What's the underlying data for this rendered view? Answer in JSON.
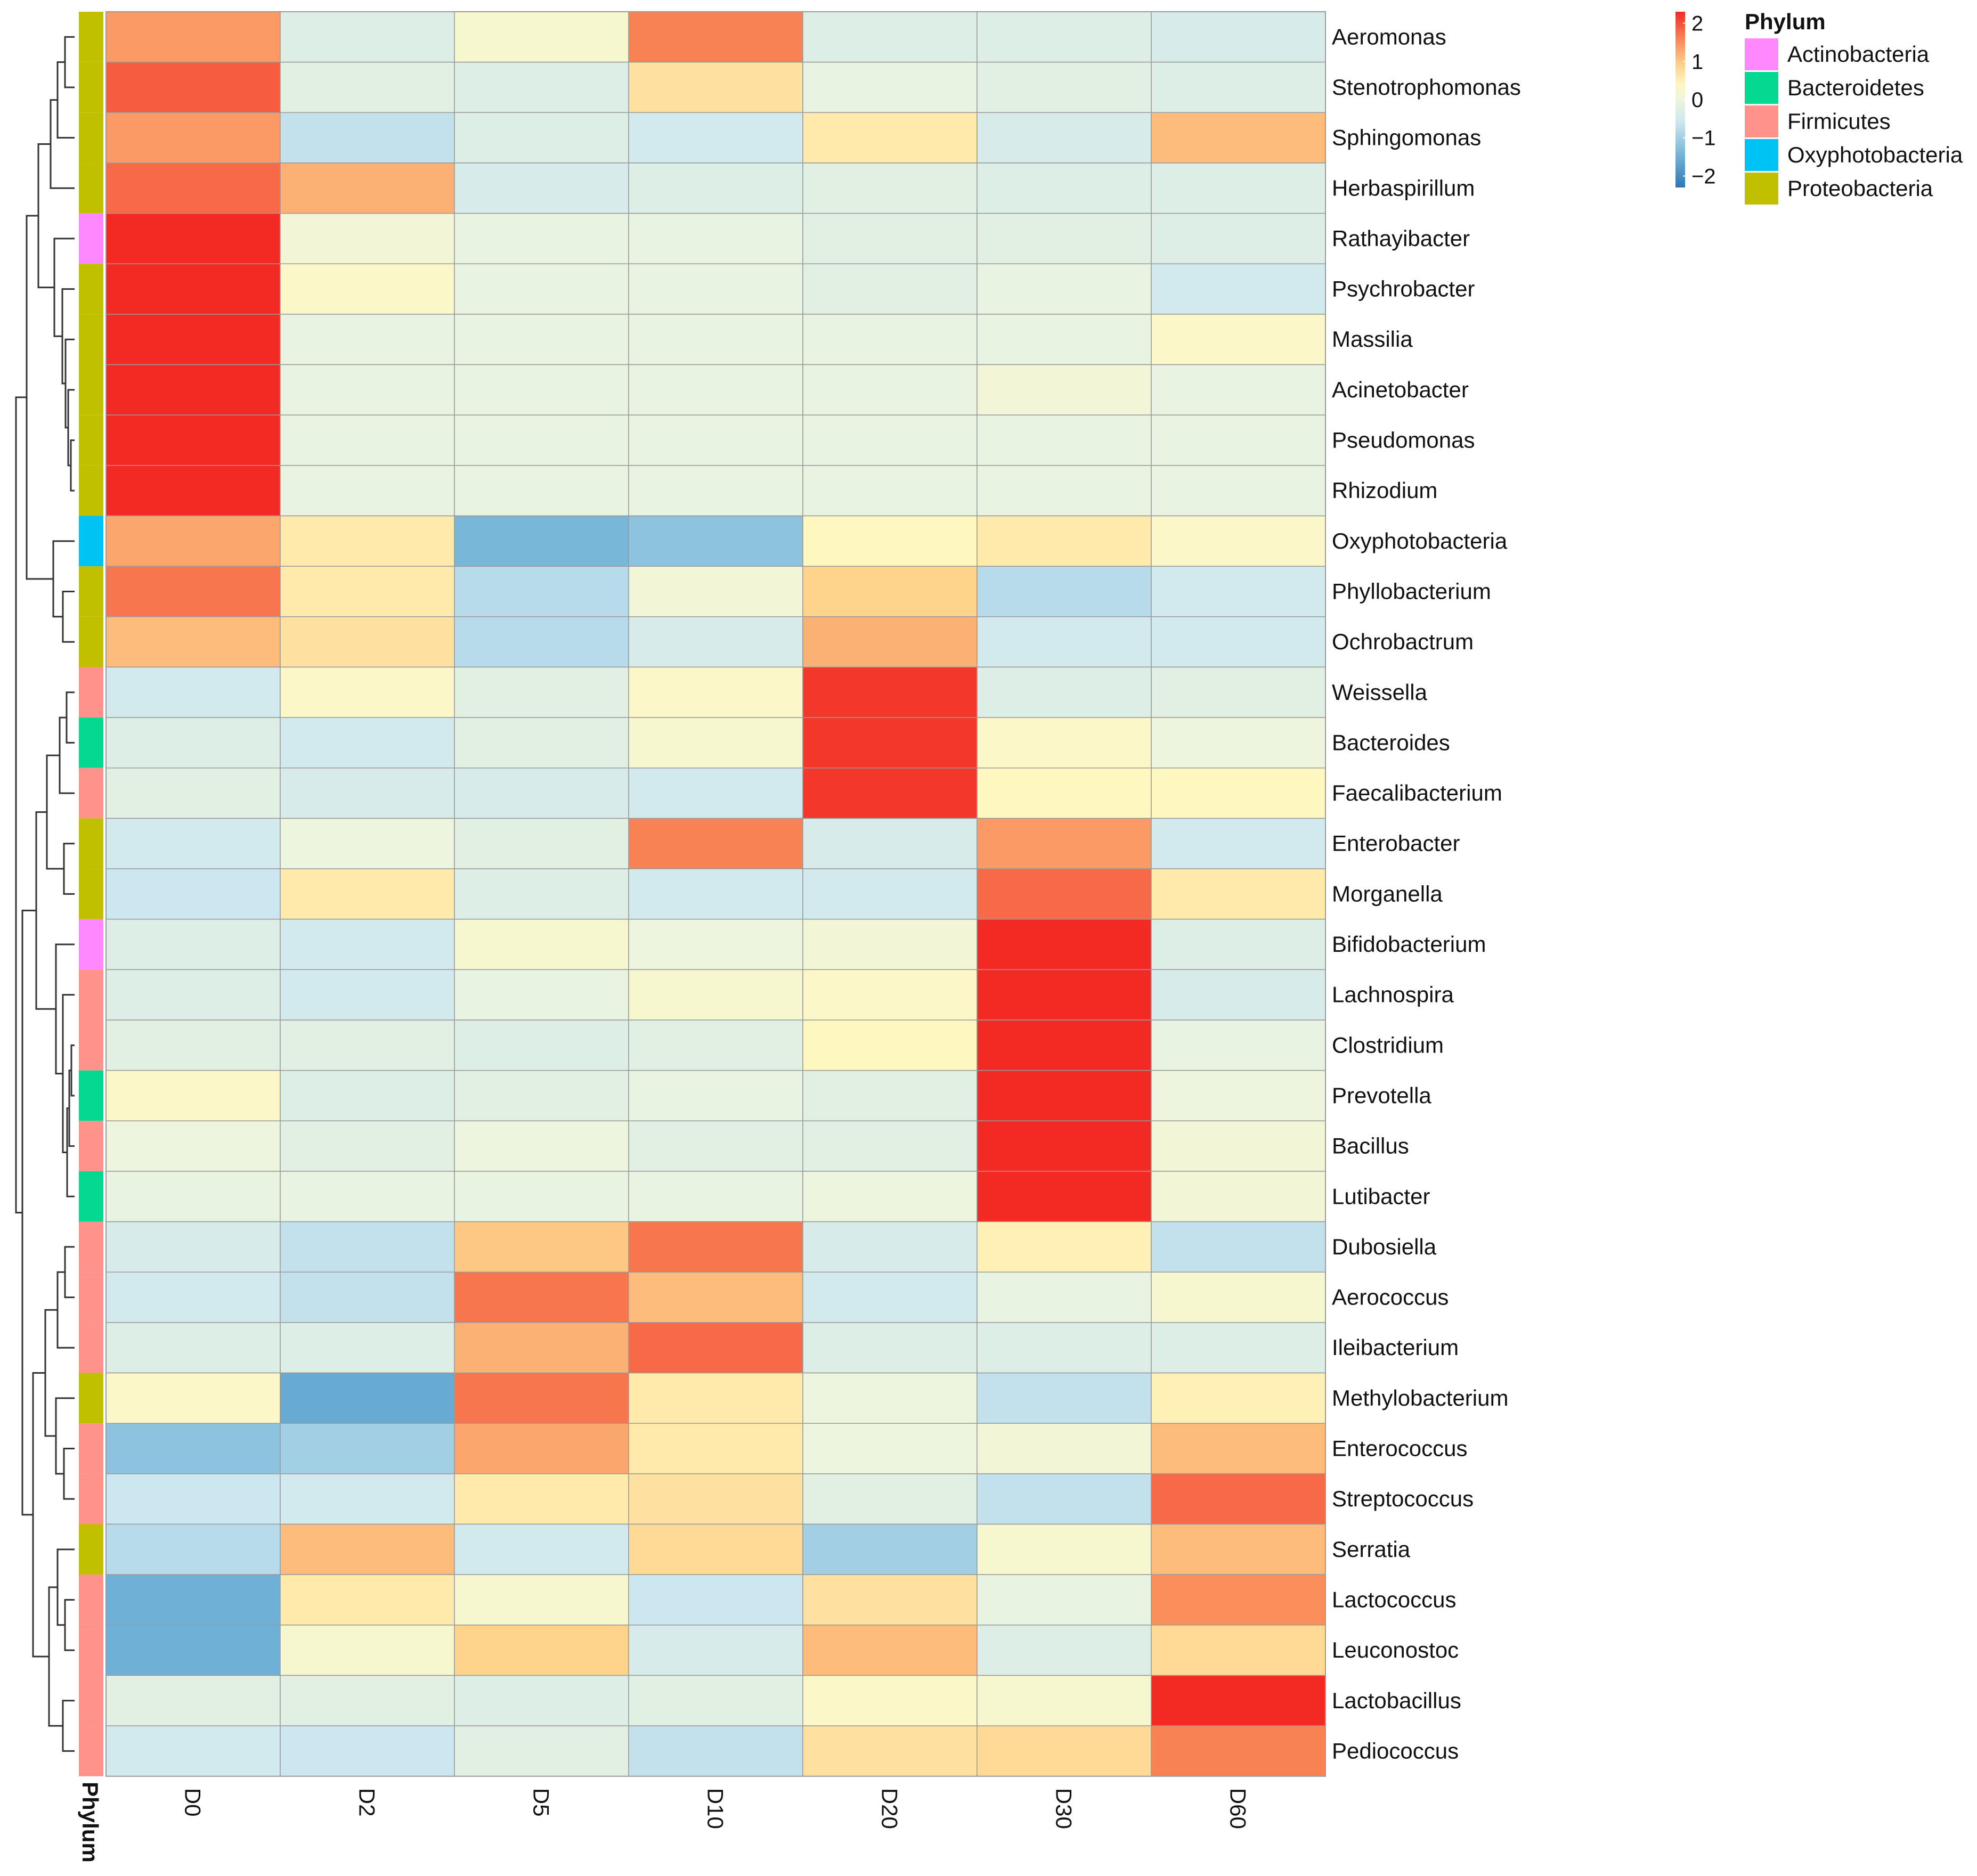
{
  "chart_data": {
    "type": "heatmap",
    "title": "",
    "annotation_title": "Phylum",
    "columns": [
      "D0",
      "D2",
      "D5",
      "D10",
      "D20",
      "D30",
      "D60"
    ],
    "rows": [
      {
        "name": "Aeromonas",
        "phylum": "Proteobacteria",
        "values": [
          1.4,
          -0.3,
          0.2,
          1.6,
          -0.3,
          -0.3,
          -0.4
        ]
      },
      {
        "name": "Stenotrophomonas",
        "phylum": "Proteobacteria",
        "values": [
          1.9,
          -0.2,
          -0.3,
          0.7,
          -0.1,
          -0.2,
          -0.3
        ]
      },
      {
        "name": "Sphingomonas",
        "phylum": "Proteobacteria",
        "values": [
          1.4,
          -0.7,
          -0.3,
          -0.5,
          0.6,
          -0.4,
          1.1
        ]
      },
      {
        "name": "Herbaspirillum",
        "phylum": "Proteobacteria",
        "values": [
          1.8,
          1.2,
          -0.4,
          -0.3,
          -0.2,
          -0.3,
          -0.3
        ]
      },
      {
        "name": "Rathayibacter",
        "phylum": "Actinobacteria",
        "values": [
          2.3,
          0.1,
          -0.1,
          -0.1,
          -0.2,
          -0.2,
          -0.3
        ]
      },
      {
        "name": "Psychrobacter",
        "phylum": "Proteobacteria",
        "values": [
          2.3,
          0.3,
          -0.1,
          -0.1,
          -0.2,
          -0.1,
          -0.5
        ]
      },
      {
        "name": "Massilia",
        "phylum": "Proteobacteria",
        "values": [
          2.3,
          -0.1,
          -0.1,
          -0.1,
          -0.1,
          -0.1,
          0.3
        ]
      },
      {
        "name": "Acinetobacter",
        "phylum": "Proteobacteria",
        "values": [
          2.3,
          -0.1,
          -0.1,
          -0.1,
          -0.1,
          0.1,
          -0.1
        ]
      },
      {
        "name": "Pseudomonas",
        "phylum": "Proteobacteria",
        "values": [
          2.3,
          -0.1,
          -0.1,
          -0.1,
          -0.1,
          -0.1,
          -0.1
        ]
      },
      {
        "name": "Rhizodium",
        "phylum": "Proteobacteria",
        "values": [
          2.3,
          -0.1,
          -0.1,
          -0.1,
          -0.1,
          -0.1,
          -0.1
        ]
      },
      {
        "name": "Oxyphotobacteria",
        "phylum": "Oxyphotobacteria",
        "values": [
          1.3,
          0.6,
          -1.4,
          -1.2,
          0.4,
          0.6,
          0.3
        ]
      },
      {
        "name": "Phyllobacterium",
        "phylum": "Proteobacteria",
        "values": [
          1.7,
          0.6,
          -0.8,
          0.1,
          0.9,
          -0.8,
          -0.5
        ]
      },
      {
        "name": "Ochrobactrum",
        "phylum": "Proteobacteria",
        "values": [
          1.1,
          0.7,
          -0.8,
          -0.4,
          1.2,
          -0.5,
          -0.5
        ]
      },
      {
        "name": "Weissella",
        "phylum": "Firmicutes",
        "values": [
          -0.5,
          0.3,
          -0.2,
          0.3,
          2.2,
          -0.3,
          -0.2
        ]
      },
      {
        "name": "Bacteroides",
        "phylum": "Bacteroidetes",
        "values": [
          -0.3,
          -0.5,
          -0.2,
          0.2,
          2.2,
          0.3,
          0.0
        ]
      },
      {
        "name": "Faecalibacterium",
        "phylum": "Firmicutes",
        "values": [
          -0.2,
          -0.4,
          -0.4,
          -0.5,
          2.2,
          0.4,
          0.4
        ]
      },
      {
        "name": "Enterobacter",
        "phylum": "Proteobacteria",
        "values": [
          -0.5,
          0.0,
          -0.2,
          1.6,
          -0.4,
          1.4,
          -0.5
        ]
      },
      {
        "name": "Morganella",
        "phylum": "Proteobacteria",
        "values": [
          -0.6,
          0.6,
          -0.3,
          -0.5,
          -0.5,
          1.8,
          0.6
        ]
      },
      {
        "name": "Bifidobacterium",
        "phylum": "Actinobacteria",
        "values": [
          -0.3,
          -0.5,
          0.2,
          0.0,
          0.1,
          2.3,
          -0.3
        ]
      },
      {
        "name": "Lachnospira",
        "phylum": "Firmicutes",
        "values": [
          -0.3,
          -0.5,
          -0.1,
          0.2,
          0.3,
          2.3,
          -0.4
        ]
      },
      {
        "name": "Clostridium",
        "phylum": "Firmicutes",
        "values": [
          -0.2,
          -0.2,
          -0.3,
          -0.2,
          0.4,
          2.3,
          -0.1
        ]
      },
      {
        "name": "Prevotella",
        "phylum": "Bacteroidetes",
        "values": [
          0.3,
          -0.3,
          -0.2,
          -0.1,
          -0.2,
          2.3,
          0.0
        ]
      },
      {
        "name": "Bacillus",
        "phylum": "Firmicutes",
        "values": [
          0.0,
          -0.2,
          0.0,
          -0.2,
          -0.2,
          2.3,
          0.1
        ]
      },
      {
        "name": "Lutibacter",
        "phylum": "Bacteroidetes",
        "values": [
          -0.1,
          -0.1,
          -0.1,
          -0.1,
          0.0,
          2.3,
          0.1
        ]
      },
      {
        "name": "Dubosiella",
        "phylum": "Firmicutes",
        "values": [
          -0.4,
          -0.7,
          1.0,
          1.7,
          -0.4,
          0.5,
          -0.7
        ]
      },
      {
        "name": "Aerococcus",
        "phylum": "Firmicutes",
        "values": [
          -0.5,
          -0.7,
          1.7,
          1.1,
          -0.5,
          -0.1,
          0.2
        ]
      },
      {
        "name": "Ileibacterium",
        "phylum": "Firmicutes",
        "values": [
          -0.3,
          -0.3,
          1.2,
          1.8,
          -0.3,
          -0.3,
          -0.3
        ]
      },
      {
        "name": "Methylobacterium",
        "phylum": "Proteobacteria",
        "values": [
          0.3,
          -1.6,
          1.7,
          0.6,
          0.0,
          -0.7,
          0.5
        ]
      },
      {
        "name": "Enterococcus",
        "phylum": "Firmicutes",
        "values": [
          -1.2,
          -1.0,
          1.3,
          0.6,
          0.0,
          0.1,
          1.1
        ]
      },
      {
        "name": "Streptococcus",
        "phylum": "Firmicutes",
        "values": [
          -0.6,
          -0.5,
          0.6,
          0.7,
          -0.2,
          -0.7,
          1.8
        ]
      },
      {
        "name": "Serratia",
        "phylum": "Proteobacteria",
        "values": [
          -0.8,
          1.1,
          -0.5,
          0.8,
          -1.0,
          0.2,
          1.1
        ]
      },
      {
        "name": "Lactococcus",
        "phylum": "Firmicutes",
        "values": [
          -1.5,
          0.6,
          0.2,
          -0.6,
          0.7,
          -0.1,
          1.5
        ]
      },
      {
        "name": "Leuconostoc",
        "phylum": "Firmicutes",
        "values": [
          -1.5,
          0.2,
          0.9,
          -0.4,
          1.1,
          -0.3,
          0.8
        ]
      },
      {
        "name": "Lactobacillus",
        "phylum": "Firmicutes",
        "values": [
          -0.2,
          -0.2,
          -0.3,
          -0.2,
          0.3,
          0.2,
          2.3
        ]
      },
      {
        "name": "Pediococcus",
        "phylum": "Firmicutes",
        "values": [
          -0.5,
          -0.6,
          -0.2,
          -0.7,
          0.7,
          0.8,
          1.6
        ]
      }
    ],
    "color_scale": {
      "min": -2.3,
      "max": 2.3,
      "ticks": [
        {
          "value": 2,
          "label": "2"
        },
        {
          "value": 1,
          "label": "1"
        },
        {
          "value": 0,
          "label": "0"
        },
        {
          "value": -1,
          "label": "−1"
        },
        {
          "value": -2,
          "label": "−2"
        }
      ],
      "stops": [
        {
          "value": -2.3,
          "color": "#2b78b6"
        },
        {
          "value": -1.5,
          "color": "#6fb1d6"
        },
        {
          "value": -0.6,
          "color": "#cce7f0"
        },
        {
          "value": 0.0,
          "color": "#edf5de"
        },
        {
          "value": 0.4,
          "color": "#fff7c0"
        },
        {
          "value": 0.9,
          "color": "#fed38c"
        },
        {
          "value": 1.5,
          "color": "#fa8f5c"
        },
        {
          "value": 2.3,
          "color": "#f22a23"
        }
      ]
    },
    "legend": {
      "title": "Phylum",
      "placement": "top-right",
      "entries": [
        {
          "label": "Actinobacteria",
          "color": "#ff88ff"
        },
        {
          "label": "Bacteroidetes",
          "color": "#05d890"
        },
        {
          "label": "Firmicutes",
          "color": "#ff928a"
        },
        {
          "label": "Oxyphotobacteria",
          "color": "#00c3f5"
        },
        {
          "label": "Proteobacteria",
          "color": "#c1c000"
        }
      ]
    },
    "dendrogram": "row-clustering tree on left"
  }
}
